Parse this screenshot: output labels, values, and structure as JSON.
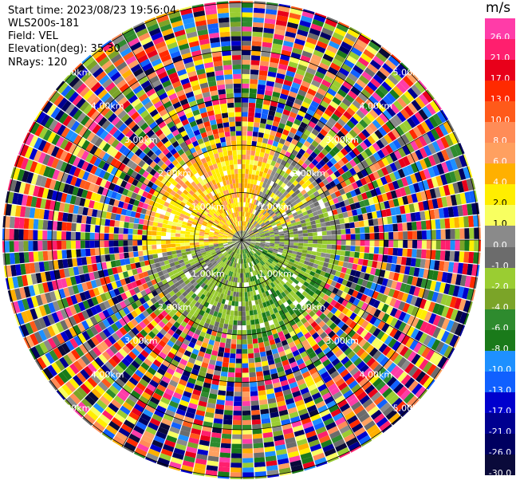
{
  "header": {
    "start_time": "Start time: 2023/08/23 19:56:04",
    "instrument": "WLS200s-181",
    "field": "Field: VEL",
    "elevation": "Elevation(deg): 35.30",
    "nrays": "NRays: 120"
  },
  "colorbar": {
    "unit": "m/s",
    "ticks": [
      "26.0",
      "21.0",
      "17.0",
      "13.0",
      "10.0",
      "8.0",
      "6.0",
      "4.0",
      "2.0",
      "1.0",
      "0.0",
      "-1.0",
      "-2.0",
      "-4.0",
      "-6.0",
      "-8.0",
      "-10.0",
      "-13.0",
      "-17.0",
      "-21.0",
      "-26.0",
      "-30.0"
    ],
    "colors": [
      "#ff3ca8",
      "#ff1f6e",
      "#e8001a",
      "#ff2a00",
      "#ff5a1a",
      "#ff8c57",
      "#ffa060",
      "#ffb000",
      "#ffee00",
      "#f8ff60",
      "#8a8a8a",
      "#6c6c6c",
      "#9acd32",
      "#7ba428",
      "#2e8b2e",
      "#1a7a1a",
      "#1e90ff",
      "#1060ff",
      "#0000cd",
      "#000090",
      "#000060",
      "#0a0a3a"
    ]
  },
  "range_rings": [
    "1.00km",
    "2.00km",
    "3.00km",
    "4.00km",
    "5.00km"
  ],
  "chart_data": {
    "type": "heatmap",
    "title": "",
    "field": "VEL",
    "units": "m/s",
    "nrays": 120,
    "range_rings_km": [
      1,
      2,
      3,
      4,
      5
    ],
    "color_levels": [
      26,
      21,
      17,
      13,
      10,
      8,
      6,
      4,
      2,
      1,
      0,
      -1,
      -2,
      -4,
      -6,
      -8,
      -10,
      -13,
      -17,
      -21,
      -26,
      -30
    ],
    "inner_region": {
      "north_west": "positive ~2 to 6 m/s (yellow/orange)",
      "east": "near 0 to -1 m/s (gray)",
      "south_south_east": "negative ~-2 to -6 m/s (green)"
    },
    "outer_region": "noise, full range of colors"
  }
}
